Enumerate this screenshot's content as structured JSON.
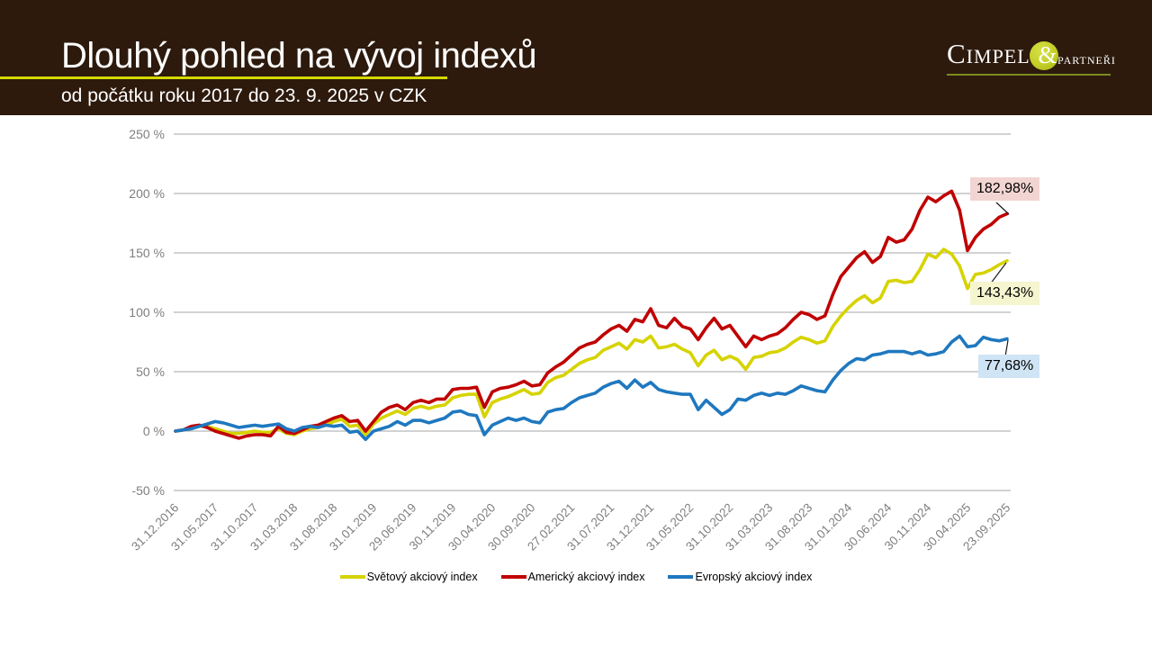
{
  "header": {
    "title": "Dlouhý pohled na vývoj indexů",
    "subtitle": "od počátku roku 2017 do 23. 9. 2025 v CZK"
  },
  "logo": {
    "name": "Cimpel",
    "amp": "&",
    "suffix": "partneři"
  },
  "chart_data": {
    "type": "line",
    "title": "",
    "xlabel": "",
    "ylabel": "",
    "ylim": [
      -50,
      250
    ],
    "grid": true,
    "legend_position": "bottom",
    "y_tick_labels": [
      "250 %",
      "200 %",
      "150 %",
      "100 %",
      "50 %",
      "0 %",
      "-50 %"
    ],
    "y_tick_values": [
      250,
      200,
      150,
      100,
      50,
      0,
      -50
    ],
    "x_tick_labels": [
      "31.12.2016",
      "31.05.2017",
      "31.10.2017",
      "31.03.2018",
      "31.08.2018",
      "31.01.2019",
      "29.06.2019",
      "30.11.2019",
      "30.04.2020",
      "30.09.2020",
      "27.02.2021",
      "31.07.2021",
      "31.12.2021",
      "31.05.2022",
      "31.10.2022",
      "31.03.2023",
      "31.08.2023",
      "31.01.2024",
      "30.06.2024",
      "30.11.2024",
      "30.04.2025",
      "23.09.2025"
    ],
    "unit": "%",
    "series": [
      {
        "name": "Světový akciový index",
        "color": "#d6d300",
        "end_label": "143,43%",
        "end_label_bg": "#f5f5cf",
        "final_value": 143.43,
        "values": [
          0,
          1,
          3,
          4,
          4,
          2,
          0,
          -2,
          -2,
          -1,
          0,
          -1,
          -1,
          2,
          -2,
          -3,
          0,
          2,
          3,
          5,
          8,
          10,
          4,
          5,
          -3,
          6,
          11,
          14,
          17,
          14,
          19,
          21,
          19,
          21,
          22,
          28,
          30,
          31,
          31,
          12,
          24,
          27,
          29,
          32,
          35,
          31,
          32,
          41,
          45,
          47,
          52,
          57,
          60,
          62,
          68,
          71,
          74,
          69,
          77,
          75,
          80,
          70,
          71,
          73,
          69,
          66,
          55,
          64,
          68,
          60,
          63,
          60,
          52,
          62,
          63,
          66,
          67,
          70,
          75,
          79,
          77,
          74,
          76,
          88,
          97,
          104,
          110,
          114,
          108,
          112,
          126,
          127,
          125,
          126,
          136,
          149,
          146,
          153,
          149,
          139,
          120,
          132,
          133,
          136,
          140,
          143.43
        ]
      },
      {
        "name": "Americký akciový index",
        "color": "#c00000",
        "end_label": "182,98%",
        "end_label_bg": "#f2d5d2",
        "final_value": 182.98,
        "values": [
          0,
          1,
          4,
          5,
          3,
          0,
          -2,
          -4,
          -6,
          -4,
          -3,
          -3,
          -4,
          4,
          -1,
          -2,
          1,
          4,
          5,
          8,
          11,
          13,
          8,
          9,
          0,
          8,
          16,
          20,
          22,
          18,
          24,
          26,
          24,
          27,
          27,
          35,
          36,
          36,
          37,
          20,
          33,
          36,
          37,
          39,
          42,
          38,
          39,
          49,
          54,
          58,
          64,
          70,
          73,
          75,
          81,
          86,
          89,
          84,
          94,
          92,
          103,
          89,
          87,
          95,
          88,
          86,
          77,
          87,
          95,
          86,
          89,
          80,
          71,
          80,
          77,
          80,
          82,
          87,
          94,
          100,
          98,
          94,
          97,
          115,
          130,
          138,
          146,
          151,
          142,
          147,
          163,
          159,
          161,
          170,
          186,
          197,
          193,
          198,
          202,
          186,
          152,
          163,
          170,
          174,
          180,
          182.98
        ]
      },
      {
        "name": "Evropský akciový index",
        "color": "#1f78bf",
        "end_label": "77,68%",
        "end_label_bg": "#cfe4f5",
        "final_value": 77.68,
        "values": [
          0,
          1,
          2,
          4,
          6,
          8,
          7,
          5,
          3,
          4,
          5,
          4,
          5,
          6,
          2,
          0,
          3,
          4,
          3,
          5,
          4,
          5,
          -1,
          0,
          -7,
          0,
          2,
          4,
          8,
          5,
          9,
          9,
          7,
          9,
          11,
          16,
          17,
          14,
          13,
          -3,
          5,
          8,
          11,
          9,
          11,
          8,
          7,
          16,
          18,
          19,
          24,
          28,
          30,
          32,
          37,
          40,
          42,
          36,
          43,
          37,
          41,
          35,
          33,
          32,
          31,
          31,
          18,
          26,
          20,
          14,
          18,
          27,
          26,
          30,
          32,
          30,
          32,
          31,
          34,
          38,
          36,
          34,
          33,
          43,
          51,
          57,
          61,
          60,
          64,
          65,
          67,
          67,
          67,
          65,
          67,
          64,
          65,
          67,
          75,
          80,
          71,
          72,
          79,
          77,
          76,
          77.68
        ]
      }
    ]
  }
}
